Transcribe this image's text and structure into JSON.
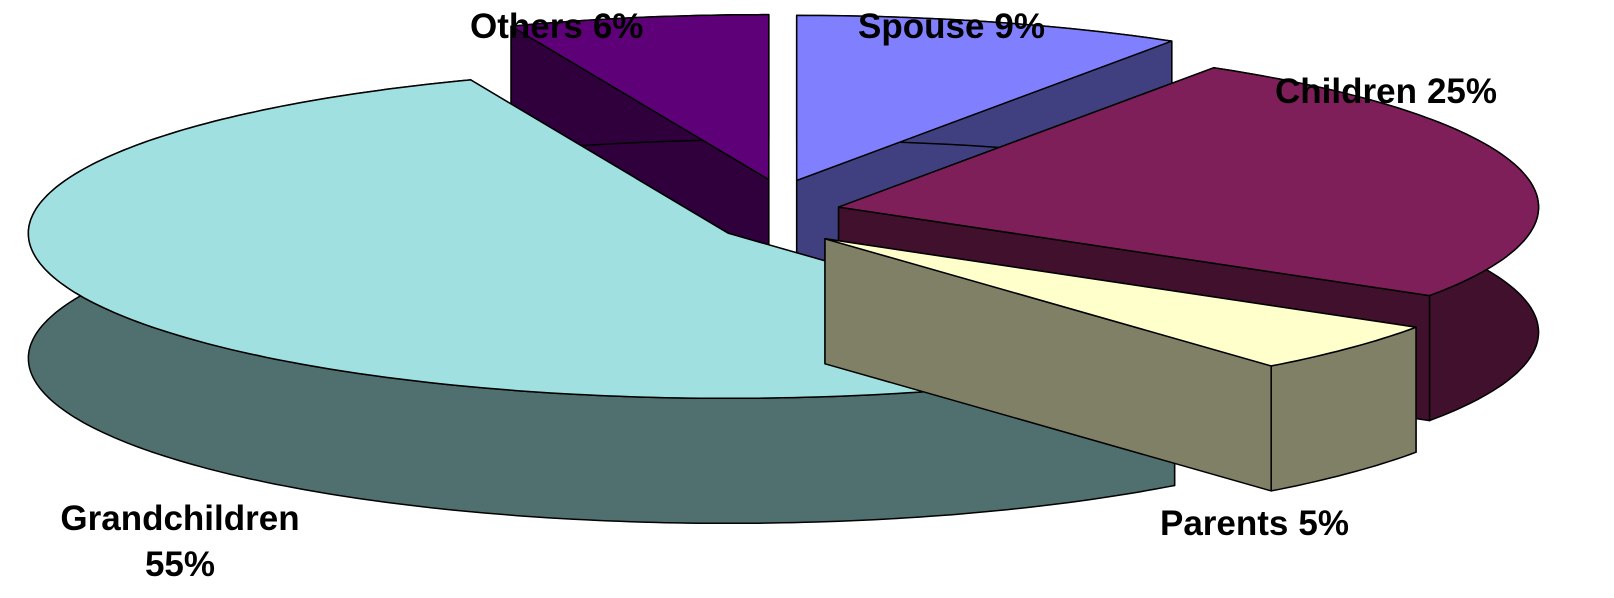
{
  "chart_data": {
    "type": "pie",
    "categories": [
      "Spouse",
      "Children",
      "Parents",
      "Grandchildren",
      "Others"
    ],
    "values": [
      9,
      25,
      5,
      55,
      6
    ],
    "value_labels": [
      "9%",
      "25%",
      "5%",
      "55%",
      "6%"
    ],
    "colors": [
      "#8080ff",
      "#7f1f5a",
      "#ffffcc",
      "#a0e0e0",
      "#5e0077"
    ]
  }
}
